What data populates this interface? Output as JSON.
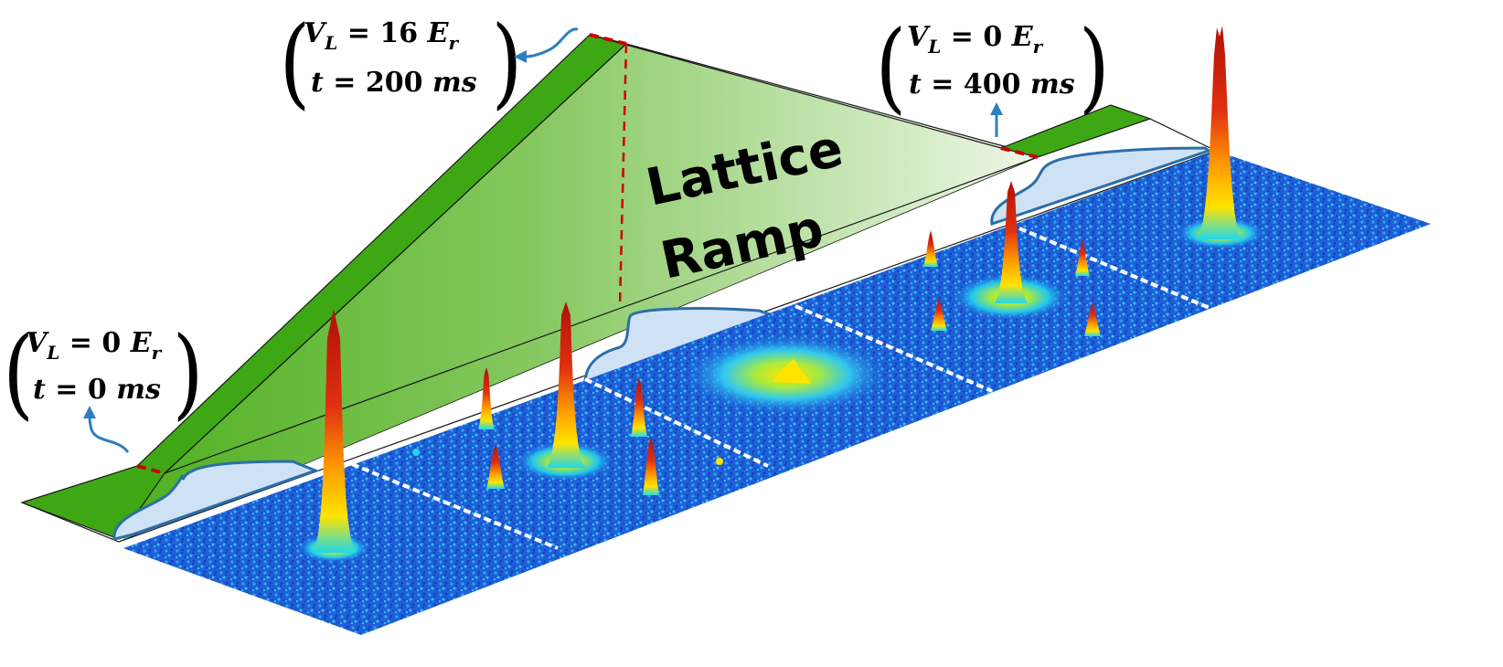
{
  "ramp_label": {
    "line1": "Lattice",
    "line2": "Ramp"
  },
  "annotations": [
    {
      "id": "start",
      "V_symbol": "V",
      "V_sub": "L",
      "V_value": "0",
      "E_symbol": "E",
      "E_sub": "r",
      "t_symbol": "t",
      "t_value": "0",
      "t_unit": "ms"
    },
    {
      "id": "peak",
      "V_symbol": "V",
      "V_sub": "L",
      "V_value": "16",
      "E_symbol": "E",
      "E_sub": "r",
      "t_symbol": "t",
      "t_value": "200",
      "t_unit": "ms"
    },
    {
      "id": "end",
      "V_symbol": "V",
      "V_sub": "L",
      "V_value": "0",
      "E_symbol": "E",
      "E_sub": "r",
      "t_symbol": "t",
      "t_value": "400",
      "t_unit": "ms"
    }
  ],
  "colors": {
    "ramp_green": "#3ea814",
    "ramp_fill_dark": "#4fb020",
    "ramp_fill_light": "#e8f4df",
    "marker_red": "#cc0000",
    "arrow_blue": "#2d7fc0",
    "brace_blue": "#2d6ea8",
    "brace_fill": "#cfe2f5",
    "plane_blue": "#1f5fd8",
    "peak_red": "#d01a0a",
    "peak_yellow": "#ffe400",
    "peak_cyan": "#22d8e8"
  },
  "panels": [
    {
      "id": "panel-1",
      "description_icon": "single-central-peak"
    },
    {
      "id": "panel-2",
      "description_icon": "lattice-diffraction-peaks"
    },
    {
      "id": "panel-3",
      "description_icon": "diffuse-cloud"
    },
    {
      "id": "panel-4",
      "description_icon": "lattice-diffraction-peaks-revived"
    },
    {
      "id": "panel-5",
      "description_icon": "single-central-peak-restored"
    }
  ]
}
